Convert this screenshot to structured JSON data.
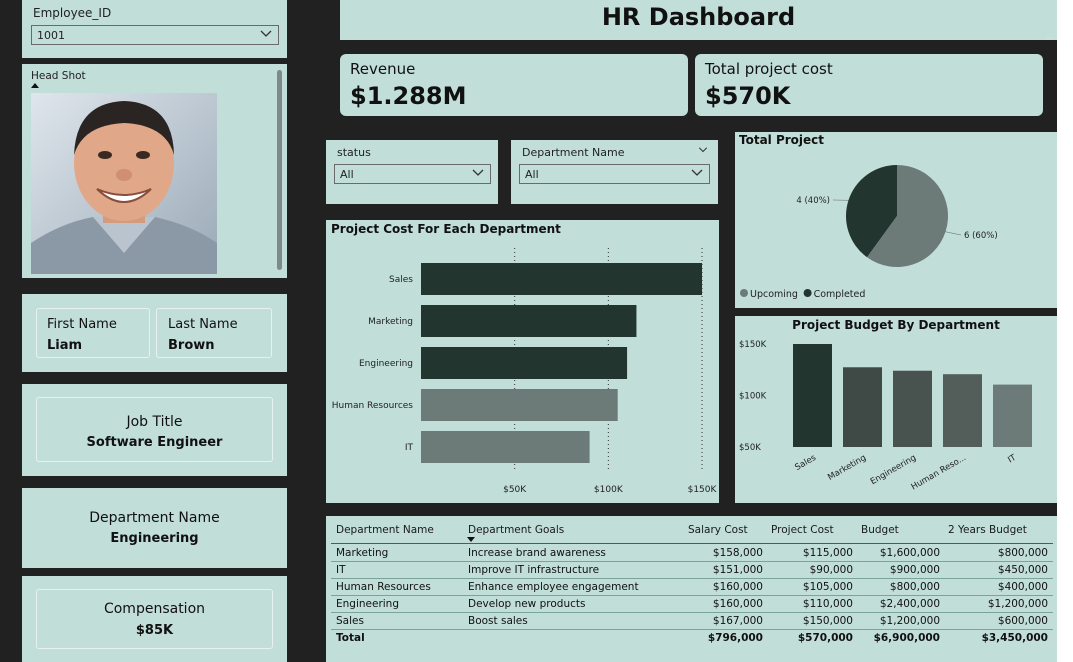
{
  "filters": {
    "employee_id_label": "Employee_ID",
    "employee_id_value": "1001",
    "status_label": "status",
    "status_value": "All",
    "department_label": "Department Name",
    "department_value": "All"
  },
  "headshot": {
    "label": "Head Shot"
  },
  "employee": {
    "first_name_label": "First Name",
    "first_name": "Liam",
    "last_name_label": "Last Name",
    "last_name": "Brown",
    "job_title_label": "Job Title",
    "job_title": "Software Engineer",
    "department_label": "Department Name",
    "department": "Engineering",
    "compensation_label": "Compensation",
    "compensation": "$85K"
  },
  "header": {
    "title": "HR Dashboard",
    "minimize": "_"
  },
  "kpis": {
    "revenue_label": "Revenue",
    "revenue_value": "$1.288M",
    "cost_label": "Total project cost",
    "cost_value": "$570K"
  },
  "colors": {
    "background": "#212121",
    "panel": "#c1ded9",
    "dark": "#22352f",
    "mid": "#3f4a47",
    "grey": "#6c7b78"
  },
  "chart_data": [
    {
      "type": "bar",
      "orientation": "horizontal",
      "title": "Project Cost For Each Department",
      "categories": [
        "Sales",
        "Marketing",
        "Engineering",
        "Human Resources",
        "IT"
      ],
      "values": [
        150000,
        115000,
        110000,
        105000,
        90000
      ],
      "xticks": [
        "$50K",
        "$100K",
        "$150K"
      ],
      "xtick_values": [
        50000,
        100000,
        150000
      ],
      "xlim": [
        0,
        150000
      ],
      "grid": "vertical-dotted"
    },
    {
      "type": "pie",
      "title": "Total Project",
      "slices": [
        {
          "name": "Completed",
          "value": 4,
          "label": "4 (40%)",
          "color": "#22352f"
        },
        {
          "name": "Upcoming",
          "value": 6,
          "label": "6 (60%)",
          "color": "#6c7b78"
        }
      ],
      "legend": [
        "Upcoming",
        "Completed"
      ],
      "legend_position": "bottom-left"
    },
    {
      "type": "bar",
      "title": "Project Budget By Department",
      "categories": [
        "Sales",
        "Marketing",
        "Engineering",
        "Human Reso...",
        "IT"
      ],
      "values": [
        150000,
        115000,
        110000,
        105000,
        90000
      ],
      "yticks": [
        "$150K",
        "$100K",
        "$50K"
      ],
      "ytick_values": [
        150000,
        100000,
        50000
      ],
      "ylim": [
        50000,
        150000
      ]
    }
  ],
  "table": {
    "headers": [
      "Department Name",
      "Department Goals",
      "Salary Cost",
      "Project Cost",
      "Budget",
      "2 Years Budget"
    ],
    "rows": [
      [
        "Marketing",
        "Increase brand awareness",
        "$158,000",
        "$115,000",
        "$1,600,000",
        "$800,000"
      ],
      [
        "IT",
        "Improve IT infrastructure",
        "$151,000",
        "$90,000",
        "$900,000",
        "$450,000"
      ],
      [
        "Human Resources",
        "Enhance employee engagement",
        "$160,000",
        "$105,000",
        "$800,000",
        "$400,000"
      ],
      [
        "Engineering",
        "Develop new products",
        "$160,000",
        "$110,000",
        "$2,400,000",
        "$1,200,000"
      ],
      [
        "Sales",
        "Boost sales",
        "$167,000",
        "$150,000",
        "$1,200,000",
        "$600,000"
      ]
    ],
    "total": [
      "Total",
      "",
      "$796,000",
      "$570,000",
      "$6,900,000",
      "$3,450,000"
    ]
  }
}
